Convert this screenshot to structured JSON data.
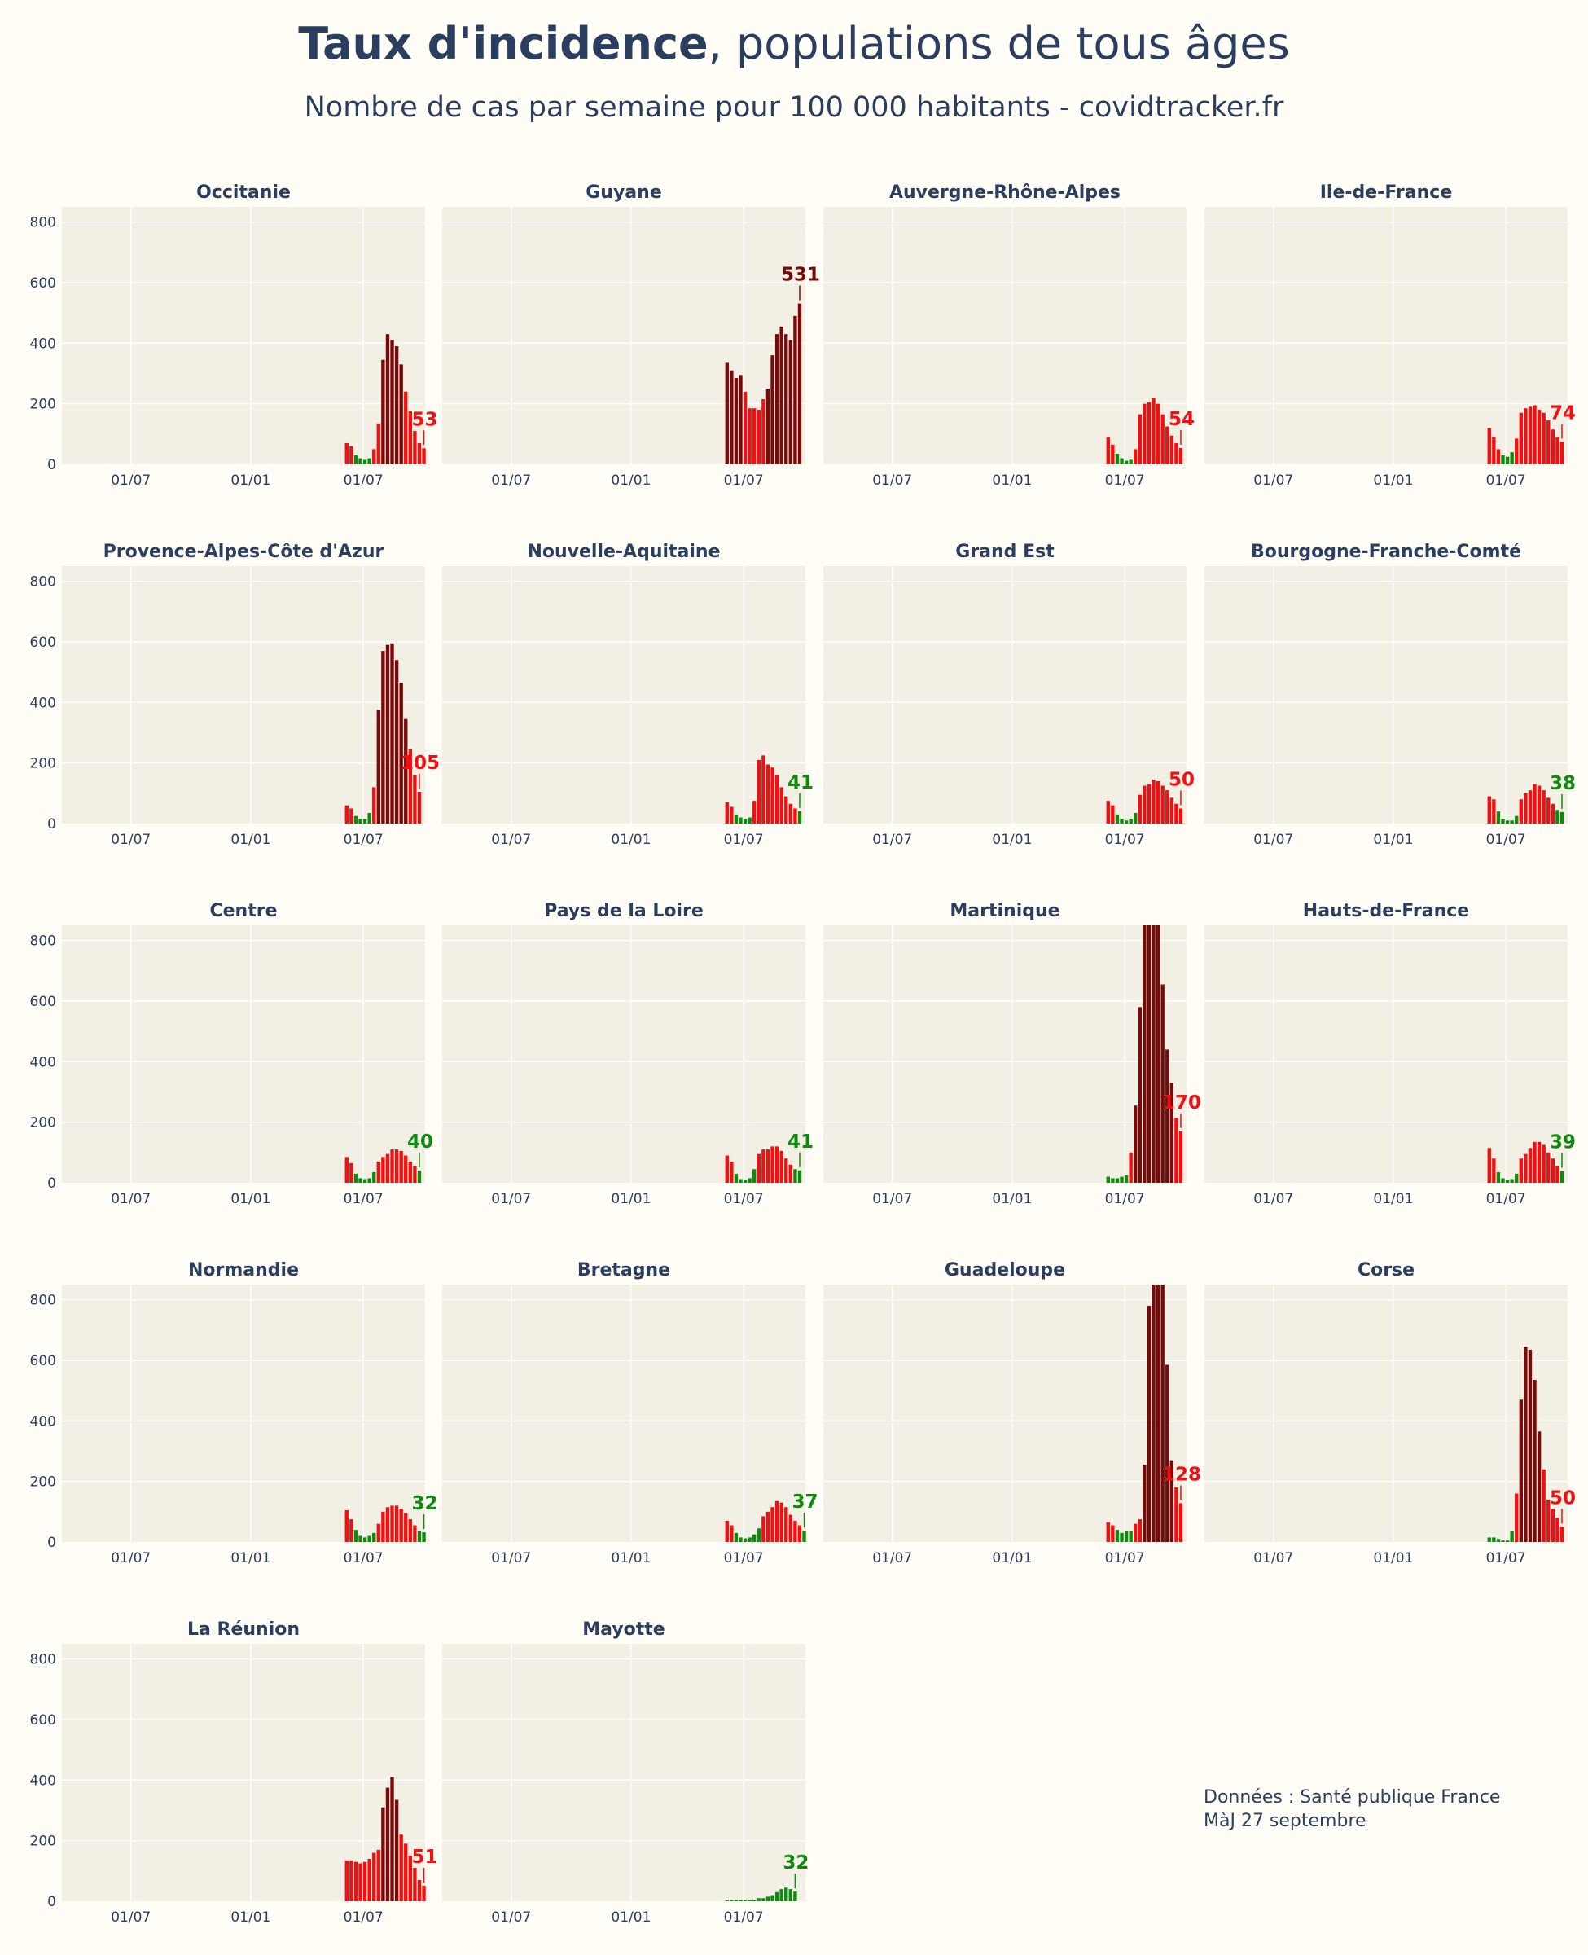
{
  "header": {
    "title_bold": "Taux d'incidence",
    "title_rest": ", populations de tous âges",
    "subtitle": "Nombre de cas par semaine pour 100 000 habitants - covidtracker.fr"
  },
  "footer": {
    "source": "Données : Santé publique France",
    "update": "MàJ 27 septembre"
  },
  "colors": {
    "low": "#0f8a0f",
    "mid": "#f20f0f",
    "high": "#7a0a0a",
    "plot_bg": "#f2efe5",
    "grid": "#ffffff",
    "text": "#2a3f5f"
  },
  "chart_data": [
    {
      "type": "bar",
      "title": "Occitanie",
      "xticks": [
        "01/07",
        "01/01",
        "01/07"
      ],
      "yticks": [
        0,
        200,
        400,
        600,
        800
      ],
      "ylim": [
        0,
        850
      ],
      "values": [
        70,
        60,
        30,
        20,
        15,
        20,
        50,
        135,
        345,
        430,
        410,
        390,
        330,
        240,
        175,
        110,
        70,
        53
      ],
      "last_label": "53"
    },
    {
      "type": "bar",
      "title": "Guyane",
      "xticks": [
        "01/07",
        "01/01",
        "01/07"
      ],
      "yticks": [
        0,
        200,
        400,
        600,
        800
      ],
      "ylim": [
        0,
        850
      ],
      "values": [
        335,
        310,
        285,
        295,
        240,
        185,
        185,
        180,
        215,
        250,
        360,
        430,
        455,
        430,
        410,
        490,
        531
      ],
      "last_label": "531"
    },
    {
      "type": "bar",
      "title": "Auvergne-Rhône-Alpes",
      "xticks": [
        "01/07",
        "01/01",
        "01/07"
      ],
      "yticks": [
        0,
        200,
        400,
        600,
        800
      ],
      "ylim": [
        0,
        850
      ],
      "values": [
        90,
        65,
        35,
        20,
        12,
        15,
        50,
        165,
        200,
        205,
        220,
        200,
        165,
        125,
        95,
        70,
        54
      ],
      "last_label": "54"
    },
    {
      "type": "bar",
      "title": "Ile-de-France",
      "xticks": [
        "01/07",
        "01/01",
        "01/07"
      ],
      "yticks": [
        0,
        200,
        400,
        600,
        800
      ],
      "ylim": [
        0,
        850
      ],
      "values": [
        120,
        90,
        50,
        30,
        25,
        40,
        85,
        170,
        185,
        190,
        195,
        180,
        170,
        145,
        115,
        90,
        74
      ],
      "last_label": "74"
    },
    {
      "type": "bar",
      "title": "Provence-Alpes-Côte d'Azur",
      "xticks": [
        "01/07",
        "01/01",
        "01/07"
      ],
      "yticks": [
        0,
        200,
        400,
        600,
        800
      ],
      "ylim": [
        0,
        850
      ],
      "values": [
        60,
        50,
        25,
        15,
        15,
        35,
        120,
        375,
        570,
        590,
        595,
        540,
        465,
        345,
        245,
        160,
        105
      ],
      "last_label": "105"
    },
    {
      "type": "bar",
      "title": "Nouvelle-Aquitaine",
      "xticks": [
        "01/07",
        "01/01",
        "01/07"
      ],
      "yticks": [
        0,
        200,
        400,
        600,
        800
      ],
      "ylim": [
        0,
        850
      ],
      "values": [
        70,
        55,
        30,
        20,
        15,
        20,
        75,
        210,
        225,
        195,
        185,
        160,
        120,
        90,
        65,
        50,
        41
      ],
      "last_label": "41"
    },
    {
      "type": "bar",
      "title": "Grand Est",
      "xticks": [
        "01/07",
        "01/01",
        "01/07"
      ],
      "yticks": [
        0,
        200,
        400,
        600,
        800
      ],
      "ylim": [
        0,
        850
      ],
      "values": [
        75,
        60,
        30,
        15,
        10,
        15,
        35,
        95,
        125,
        130,
        145,
        140,
        125,
        110,
        85,
        65,
        50
      ],
      "last_label": "50"
    },
    {
      "type": "bar",
      "title": "Bourgogne-Franche-Comté",
      "xticks": [
        "01/07",
        "01/01",
        "01/07"
      ],
      "yticks": [
        0,
        200,
        400,
        600,
        800
      ],
      "ylim": [
        0,
        850
      ],
      "values": [
        90,
        80,
        40,
        15,
        10,
        10,
        25,
        80,
        100,
        110,
        130,
        125,
        110,
        85,
        65,
        45,
        38
      ],
      "last_label": "38"
    },
    {
      "type": "bar",
      "title": "Centre",
      "xticks": [
        "01/07",
        "01/01",
        "01/07"
      ],
      "yticks": [
        0,
        200,
        400,
        600,
        800
      ],
      "ylim": [
        0,
        850
      ],
      "values": [
        85,
        65,
        30,
        15,
        12,
        15,
        35,
        70,
        85,
        95,
        110,
        110,
        105,
        90,
        70,
        55,
        40
      ],
      "last_label": "40"
    },
    {
      "type": "bar",
      "title": "Pays de la Loire",
      "xticks": [
        "01/07",
        "01/01",
        "01/07"
      ],
      "yticks": [
        0,
        200,
        400,
        600,
        800
      ],
      "ylim": [
        0,
        850
      ],
      "values": [
        90,
        70,
        30,
        12,
        10,
        15,
        45,
        95,
        110,
        110,
        120,
        120,
        105,
        80,
        60,
        45,
        41
      ],
      "last_label": "41"
    },
    {
      "type": "bar",
      "title": "Martinique",
      "xticks": [
        "01/07",
        "01/01",
        "01/07"
      ],
      "yticks": [
        0,
        200,
        400,
        600,
        800
      ],
      "ylim": [
        0,
        850
      ],
      "values": [
        20,
        15,
        15,
        20,
        25,
        100,
        255,
        580,
        850,
        850,
        850,
        850,
        655,
        440,
        330,
        215,
        170
      ],
      "last_label": "170"
    },
    {
      "type": "bar",
      "title": "Hauts-de-France",
      "xticks": [
        "01/07",
        "01/01",
        "01/07"
      ],
      "yticks": [
        0,
        200,
        400,
        600,
        800
      ],
      "ylim": [
        0,
        850
      ],
      "values": [
        115,
        80,
        35,
        15,
        10,
        12,
        30,
        80,
        95,
        115,
        135,
        135,
        125,
        100,
        80,
        55,
        39
      ],
      "last_label": "39"
    },
    {
      "type": "bar",
      "title": "Normandie",
      "xticks": [
        "01/07",
        "01/01",
        "01/07"
      ],
      "yticks": [
        0,
        200,
        400,
        600,
        800
      ],
      "ylim": [
        0,
        850
      ],
      "values": [
        105,
        75,
        40,
        20,
        15,
        20,
        30,
        60,
        100,
        115,
        120,
        120,
        110,
        95,
        75,
        55,
        35,
        32
      ],
      "last_label": "32"
    },
    {
      "type": "bar",
      "title": "Bretagne",
      "xticks": [
        "01/07",
        "01/01",
        "01/07"
      ],
      "yticks": [
        0,
        200,
        400,
        600,
        800
      ],
      "ylim": [
        0,
        850
      ],
      "values": [
        70,
        55,
        30,
        15,
        12,
        15,
        25,
        45,
        85,
        100,
        115,
        135,
        130,
        115,
        90,
        70,
        55,
        37
      ],
      "last_label": "37"
    },
    {
      "type": "bar",
      "title": "Guadeloupe",
      "xticks": [
        "01/07",
        "01/01",
        "01/07"
      ],
      "yticks": [
        0,
        200,
        400,
        600,
        800
      ],
      "ylim": [
        0,
        850
      ],
      "values": [
        65,
        55,
        40,
        30,
        35,
        35,
        60,
        75,
        255,
        780,
        850,
        850,
        850,
        585,
        270,
        180,
        128
      ],
      "last_label": "128"
    },
    {
      "type": "bar",
      "title": "Corse",
      "xticks": [
        "01/07",
        "01/01",
        "01/07"
      ],
      "yticks": [
        0,
        200,
        400,
        600,
        800
      ],
      "ylim": [
        0,
        850
      ],
      "values": [
        15,
        15,
        10,
        5,
        5,
        35,
        160,
        470,
        645,
        635,
        535,
        365,
        240,
        140,
        110,
        80,
        50
      ],
      "last_label": "50"
    },
    {
      "type": "bar",
      "title": "La Réunion",
      "xticks": [
        "01/07",
        "01/01",
        "01/07"
      ],
      "yticks": [
        0,
        200,
        400,
        600,
        800
      ],
      "ylim": [
        0,
        850
      ],
      "values": [
        135,
        135,
        130,
        125,
        130,
        140,
        160,
        170,
        310,
        375,
        410,
        335,
        220,
        190,
        150,
        110,
        70,
        51
      ],
      "last_label": "51"
    },
    {
      "type": "bar",
      "title": "Mayotte",
      "xticks": [
        "01/07",
        "01/01",
        "01/07"
      ],
      "yticks": [
        0,
        200,
        400,
        600,
        800
      ],
      "ylim": [
        0,
        850
      ],
      "values": [
        5,
        5,
        5,
        5,
        5,
        5,
        5,
        10,
        10,
        15,
        20,
        30,
        40,
        45,
        40,
        32
      ],
      "last_label": "32"
    }
  ]
}
